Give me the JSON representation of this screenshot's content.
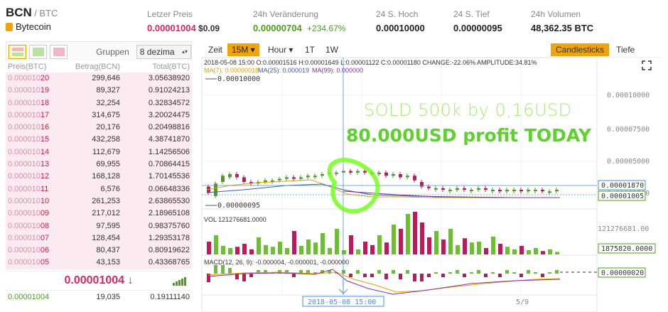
{
  "header": {
    "symbol": "BCN",
    "quote": "/ BTC",
    "coin_name": "Bytecoin",
    "last_price_label": "Letzer Preis",
    "last_price": "0.00001004",
    "last_price_usd": "$0.09",
    "change_label": "24h Veränderung",
    "change_value": "0.00000704",
    "change_percent": "+234.67%",
    "high_label": "24 S. Hoch",
    "high_value": "0.00010000",
    "low_label": "24 S. Tief",
    "low_value": "0.00000095",
    "volume_label": "24h Volumen",
    "volume_value": "48,362.35 BTC"
  },
  "orderbook": {
    "groups_label": "Gruppen",
    "groups_value": "8 dezima",
    "col_price": "Preis(BTC)",
    "col_amount": "Betrag(BCN)",
    "col_total": "Total(BTC)",
    "asks": [
      {
        "p1": "0.000010",
        "p2": "20",
        "amount": "299,646",
        "total": "3.05638920"
      },
      {
        "p1": "0.000010",
        "p2": "19",
        "amount": "89,327",
        "total": "0.91024213"
      },
      {
        "p1": "0.000010",
        "p2": "18",
        "amount": "32,254",
        "total": "0.32834572"
      },
      {
        "p1": "0.000010",
        "p2": "17",
        "amount": "314,675",
        "total": "3.20024475"
      },
      {
        "p1": "0.000010",
        "p2": "16",
        "amount": "20,176",
        "total": "0.20498816"
      },
      {
        "p1": "0.000010",
        "p2": "15",
        "amount": "432,258",
        "total": "4.38741870"
      },
      {
        "p1": "0.000010",
        "p2": "14",
        "amount": "112,679",
        "total": "1.14256506"
      },
      {
        "p1": "0.000010",
        "p2": "13",
        "amount": "69,955",
        "total": "0.70864415"
      },
      {
        "p1": "0.000010",
        "p2": "12",
        "amount": "168,128",
        "total": "1.70145536"
      },
      {
        "p1": "0.000010",
        "p2": "11",
        "amount": "6,576",
        "total": "0.06648336"
      },
      {
        "p1": "0.000010",
        "p2": "10",
        "amount": "261,253",
        "total": "2.63865530"
      },
      {
        "p1": "0.000010",
        "p2": "09",
        "amount": "217,012",
        "total": "2.18965108"
      },
      {
        "p1": "0.000010",
        "p2": "08",
        "amount": "97,595",
        "total": "0.98375760"
      },
      {
        "p1": "0.000010",
        "p2": "07",
        "amount": "128,454",
        "total": "1.29353178"
      },
      {
        "p1": "0.000010",
        "p2": "06",
        "amount": "80,437",
        "total": "0.80919622"
      },
      {
        "p1": "0.000010",
        "p2": "05",
        "amount": "43,153",
        "total": "0.43368765"
      }
    ],
    "last_trade": "0.00001004 ↓",
    "bid": {
      "price": "0.00001004",
      "amount": "19,035",
      "total": "0.19111140"
    }
  },
  "toolbar": {
    "zeit": "Zeit",
    "m15": "15M ▾",
    "hour": "Hour ▾",
    "d1": "1T",
    "w1": "1W",
    "candlesticks": "Candlesticks",
    "tiefe": "Tiefe"
  },
  "chart_texts": {
    "ohlc": "2018-05-08 15:00  O:0.00001516 H:0.00001649 L:0.00001122 C:0.00001180 CHANGE:-22.06% AMPLITUDE:34.81%",
    "ma7": "MA(7): 0.00000018",
    "ma25": "MA(25): 0.000019",
    "ma99": "MA(99): 0.000000",
    "high_mark": "0.00010000",
    "low_mark": "0.00000095",
    "vol": "VOL 121276681.0000",
    "macd": "MACD(12, 26, 9): -0.000004, -0.000001, -0.000000",
    "cross_time": "2018-05-08 15:00",
    "date_label": "5/9",
    "tag_cursor": "0.00001870",
    "tag_last": "0.00001005",
    "tag_vol": "1875820.0000",
    "tag_macd": "0.00000020",
    "vol_axis": "121276681.00"
  },
  "overlay": {
    "line1": "SOLD 500k by 0,16USD",
    "line2": "80.000USD profit TODAY"
  },
  "chart_data": {
    "type": "candlestick",
    "y_ticks": [
      "0.00010000",
      "0.00007500",
      "0.00005000",
      "0.00002500"
    ],
    "candles": [
      {
        "o": 12,
        "c": 8
      },
      {
        "o": 6,
        "c": 14
      },
      {
        "o": 15,
        "c": 19
      },
      {
        "o": 18,
        "c": 20
      },
      {
        "o": 20,
        "c": 18
      },
      {
        "o": 18,
        "c": 15
      },
      {
        "o": 15,
        "c": 14
      },
      {
        "o": 14,
        "c": 15
      },
      {
        "o": 15,
        "c": 16
      },
      {
        "o": 16,
        "c": 16
      },
      {
        "o": 16,
        "c": 17
      },
      {
        "o": 17,
        "c": 18
      },
      {
        "o": 18,
        "c": 17
      },
      {
        "o": 17,
        "c": 18
      },
      {
        "o": 18,
        "c": 19
      },
      {
        "o": 19,
        "c": 19
      },
      {
        "o": 19,
        "c": 20
      },
      {
        "o": 20,
        "c": 21
      },
      {
        "o": 21,
        "c": 21
      },
      {
        "o": 21,
        "c": 22
      },
      {
        "o": 22,
        "c": 21
      },
      {
        "o": 21,
        "c": 22
      },
      {
        "o": 22,
        "c": 21
      },
      {
        "o": 21,
        "c": 20
      },
      {
        "o": 20,
        "c": 21
      },
      {
        "o": 21,
        "c": 19
      },
      {
        "o": 19,
        "c": 20
      },
      {
        "o": 20,
        "c": 18
      },
      {
        "o": 18,
        "c": 19
      },
      {
        "o": 19,
        "c": 16
      },
      {
        "o": 15,
        "c": 12
      },
      {
        "o": 12,
        "c": 11
      },
      {
        "o": 11,
        "c": 11
      },
      {
        "o": 11,
        "c": 10
      },
      {
        "o": 10,
        "c": 10
      },
      {
        "o": 10,
        "c": 11
      },
      {
        "o": 11,
        "c": 10
      },
      {
        "o": 10,
        "c": 10
      },
      {
        "o": 10,
        "c": 11
      },
      {
        "o": 11,
        "c": 10
      },
      {
        "o": 10,
        "c": 10
      },
      {
        "o": 10,
        "c": 9
      },
      {
        "o": 9,
        "c": 10
      },
      {
        "o": 10,
        "c": 10
      },
      {
        "o": 10,
        "c": 9
      },
      {
        "o": 9,
        "c": 10
      },
      {
        "o": 10,
        "c": 10
      },
      {
        "o": 10,
        "c": 9
      },
      {
        "o": 9,
        "c": 9
      },
      {
        "o": 9,
        "c": 10
      }
    ],
    "volumes": [
      30,
      45,
      20,
      15,
      18,
      25,
      12,
      40,
      22,
      18,
      30,
      15,
      55,
      20,
      35,
      28,
      50,
      15,
      60,
      10,
      45,
      12,
      30,
      22,
      45,
      28,
      70,
      60,
      95,
      100,
      75,
      40,
      55,
      35,
      60,
      22,
      38,
      28,
      30,
      15,
      42,
      25,
      18,
      12,
      20,
      10,
      15,
      8,
      12,
      6
    ]
  }
}
